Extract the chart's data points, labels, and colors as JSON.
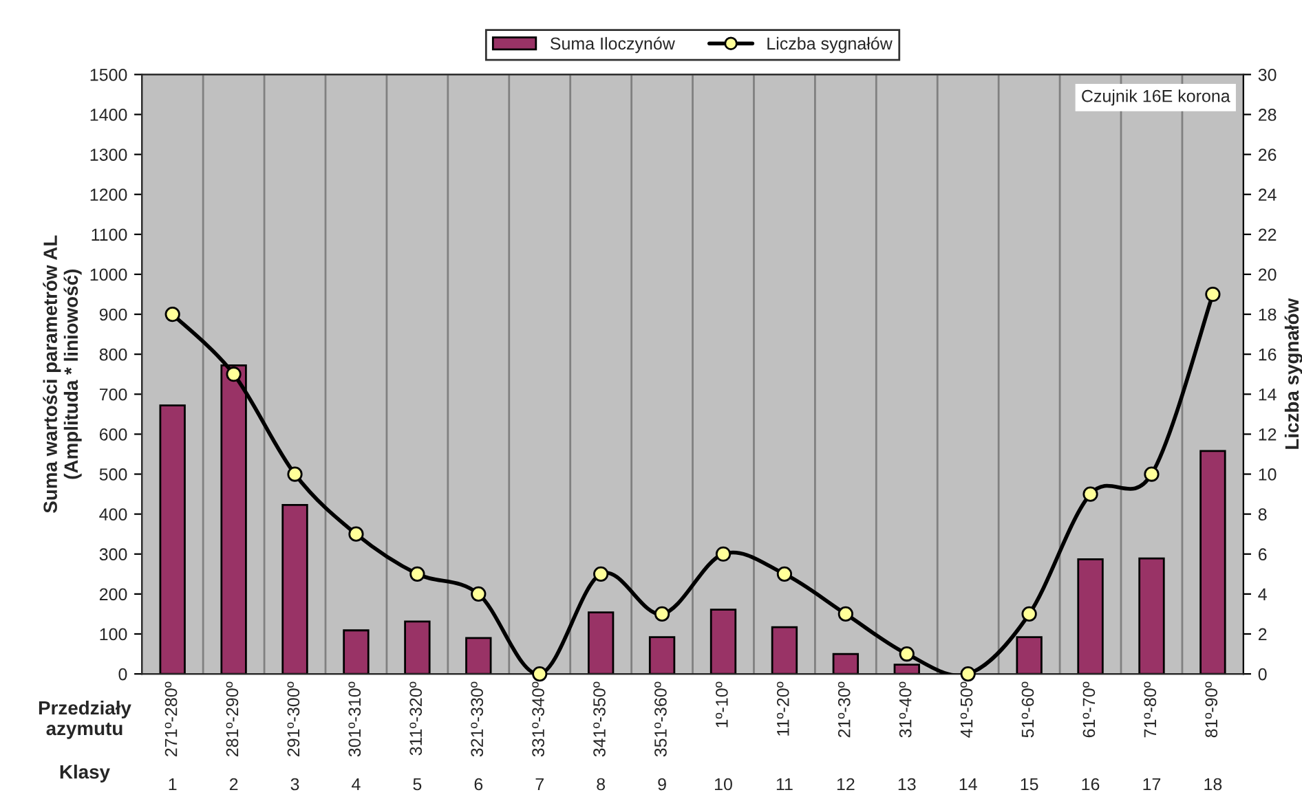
{
  "chart_data": {
    "type": "bar",
    "categories": [
      "271º-280º",
      "281º-290º",
      "291º-300º",
      "301º-310º",
      "311º-320º",
      "321º-330º",
      "331º-340º",
      "341º-350º",
      "351º-360º",
      "1º-10º",
      "11º-20º",
      "21º-30º",
      "31º-40º",
      "41º-50º",
      "51º-60º",
      "61º-70º",
      "71º-80º",
      "81º-90º"
    ],
    "series": [
      {
        "name": "Suma Iloczynów",
        "color": "#993366",
        "values": [
          672,
          772,
          423,
          109,
          131,
          90,
          0,
          154,
          92,
          161,
          117,
          50,
          23,
          0,
          92,
          287,
          289,
          558
        ]
      },
      {
        "name": "Liczba sygnałów",
        "type": "line",
        "axis": "y2",
        "color": "#000000",
        "marker": "circle",
        "values": [
          18,
          15,
          10,
          7,
          5,
          4,
          0,
          5,
          3,
          6,
          5,
          3,
          1,
          0,
          3,
          9,
          10,
          19
        ]
      }
    ],
    "ylabel": "Suma wartości parametrów AL\n(Amplituda * liniowość)",
    "y2label": "Liczba sygnałów",
    "ylim": [
      0,
      1500
    ],
    "yticks": [
      0,
      100,
      200,
      300,
      400,
      500,
      600,
      700,
      800,
      900,
      1000,
      1100,
      1200,
      1300,
      1400,
      1500
    ],
    "y2lim": [
      0,
      30
    ],
    "y2ticks": [
      0,
      2,
      4,
      6,
      8,
      10,
      12,
      14,
      16,
      18,
      20,
      22,
      24,
      26,
      28,
      30
    ],
    "grid": "x",
    "legend": "top",
    "annotations": [
      "Czujnik 16E korona",
      "Przedziały\nazymutu",
      "Klasy",
      "1",
      "2",
      "3",
      "4",
      "5",
      "6",
      "7",
      "8",
      "9",
      "10",
      "11",
      "12",
      "13",
      "14",
      "15",
      "16",
      "17",
      "18"
    ]
  }
}
